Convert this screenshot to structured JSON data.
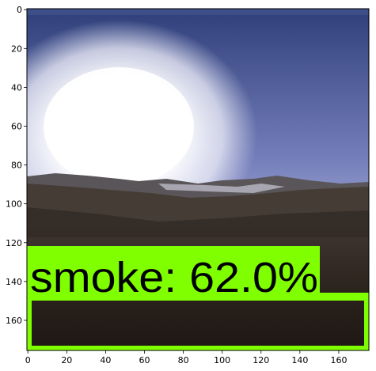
{
  "figure": {
    "x_ticks": [
      "0",
      "20",
      "40",
      "60",
      "80",
      "100",
      "120",
      "140",
      "160"
    ],
    "y_ticks": [
      "0",
      "20",
      "40",
      "60",
      "80",
      "100",
      "120",
      "140",
      "160"
    ],
    "x_range": [
      0,
      176
    ],
    "y_range": [
      0,
      176
    ]
  },
  "detection": {
    "label": "smoke: 62.0%",
    "class": "smoke",
    "confidence": 62.0,
    "box_color": "#7fff00",
    "label_bg_color": "#7fff00",
    "text_color": "#000000"
  },
  "scene": {
    "sky_top": "#3a4a82",
    "sky_mid": "#8f97c9",
    "sun": "#ffffff",
    "mountains": "#4a4039",
    "foreground": "#2a2018"
  }
}
